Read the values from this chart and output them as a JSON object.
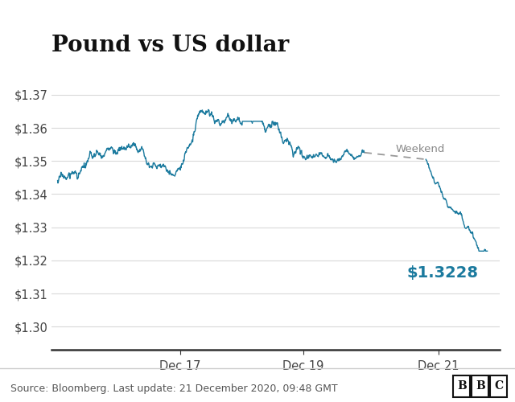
{
  "title": "Pound vs US dollar",
  "ylabel_values": [
    "$1.30",
    "$1.31",
    "$1.32",
    "$1.33",
    "$1.34",
    "$1.35",
    "$1.36",
    "$1.37"
  ],
  "ytick_vals": [
    1.3,
    1.31,
    1.32,
    1.33,
    1.34,
    1.35,
    1.36,
    1.37
  ],
  "ylim": [
    1.293,
    1.378
  ],
  "xlabel_ticks": [
    "Dec 17",
    "Dec 19",
    "Dec 21"
  ],
  "xtick_positions": [
    2.0,
    4.0,
    6.2
  ],
  "line_color": "#1b7a9e",
  "dashed_color": "#999999",
  "annotation_color": "#1b7a9e",
  "annotation_text": "$1.3228",
  "weekend_label": "Weekend",
  "source_text": "Source: Bloomberg. Last update: 21 December 2020, 09:48 GMT",
  "bbc_text": "BBC",
  "title_fontsize": 20,
  "tick_fontsize": 10.5,
  "source_fontsize": 9,
  "background_color": "#ffffff",
  "grid_color": "#d9d9d9",
  "spine_color": "#333333",
  "text_color": "#444444"
}
